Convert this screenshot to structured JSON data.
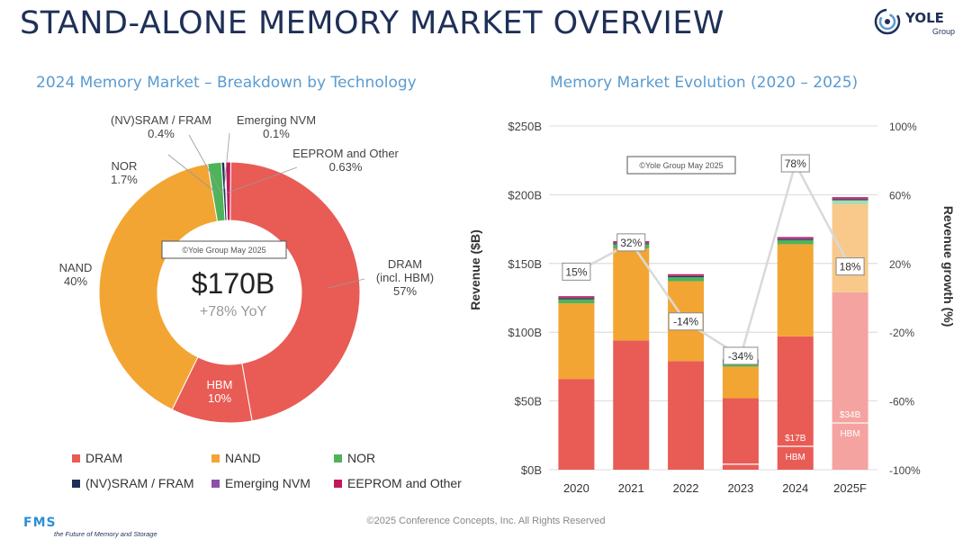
{
  "title": "STAND-ALONE MEMORY MARKET OVERVIEW",
  "logo": {
    "name": "YOLE",
    "sub": "Group"
  },
  "left_subtitle": "2024 Memory Market – Breakdown by Technology",
  "right_subtitle": "Memory Market Evolution (2020 – 2025)",
  "footer": "©2025 Conference Concepts, Inc. All Rights Reserved",
  "fms": {
    "mark": "FMS",
    "tagline": "the Future of Memory and Storage"
  },
  "colors": {
    "DRAM": "#e85c55",
    "NAND": "#f3a533",
    "NOR": "#4fb35a",
    "SRAM": "#1f3057",
    "Emerging": "#8e4fa8",
    "EEPROM": "#c2185b",
    "DRAM_light": "#f4a3a0",
    "NAND_light": "#f8c98a",
    "NOR_light": "#a8dcae",
    "growth_line": "#d9d9d9",
    "title": "#1f3057",
    "subtitle": "#5a9bd0"
  },
  "chart_data": [
    {
      "type": "pie",
      "title": "2024 Memory Market – Breakdown by Technology",
      "watermark": "©Yole Group May 2025",
      "center_value": "$170B",
      "center_sub": "+78% YoY",
      "slices": [
        {
          "key": "DRAM",
          "label_lines": [
            "DRAM",
            "(incl. HBM)",
            "57%"
          ],
          "value": 57
        },
        {
          "key": "HBM",
          "label_lines": [
            "HBM",
            "10%"
          ],
          "value": 10
        },
        {
          "key": "NAND",
          "label_lines": [
            "NAND",
            "40%"
          ],
          "value": 40
        },
        {
          "key": "NOR",
          "label_lines": [
            "NOR",
            "1.7%"
          ],
          "value": 1.7
        },
        {
          "key": "SRAM",
          "label_lines": [
            "(NV)SRAM / FRAM",
            "0.4%"
          ],
          "value": 0.4
        },
        {
          "key": "Emerging",
          "label_lines": [
            "Emerging NVM",
            "0.1%"
          ],
          "value": 0.1
        },
        {
          "key": "EEPROM",
          "label_lines": [
            "EEPROM and Other",
            "0.63%"
          ],
          "value": 0.63
        }
      ]
    },
    {
      "type": "bar",
      "title": "Memory Market Evolution (2020 – 2025)",
      "watermark": "©Yole Group May 2025",
      "categories": [
        "2020",
        "2021",
        "2022",
        "2023",
        "2024",
        "2025F"
      ],
      "ylabel": "Revenue ($B)",
      "y2label": "Revenue growth (%)",
      "ylim": [
        0,
        250
      ],
      "y2lim": [
        -100,
        100
      ],
      "yticks": [
        "$0B",
        "$50B",
        "$100B",
        "$150B",
        "$200B",
        "$250B"
      ],
      "y2ticks": [
        "-100%",
        "-60%",
        "-20%",
        "20%",
        "60%",
        "100%"
      ],
      "stacked": true,
      "series": [
        {
          "name": "DRAM",
          "values": [
            66,
            94,
            79,
            52,
            97,
            129
          ]
        },
        {
          "name": "NAND",
          "values": [
            55,
            67,
            58,
            23,
            67,
            64
          ]
        },
        {
          "name": "NOR",
          "values": [
            3,
            3,
            3,
            3,
            3,
            3
          ]
        },
        {
          "name": "(NV)SRAM / FRAM",
          "values": [
            0.7,
            0.7,
            0.7,
            0.7,
            0.7,
            0.7
          ]
        },
        {
          "name": "Emerging NVM",
          "values": [
            0.5,
            0.5,
            0.5,
            0.5,
            0.5,
            0.5
          ]
        },
        {
          "name": "EEPROM and Other",
          "values": [
            1,
            1,
            1,
            1,
            1,
            1
          ]
        }
      ],
      "hbm": [
        {
          "year": "2023",
          "value": 4,
          "labels": []
        },
        {
          "year": "2024",
          "value": 17,
          "labels": [
            "$17B",
            "HBM"
          ]
        },
        {
          "year": "2025F",
          "value": 34,
          "labels": [
            "$34B",
            "HBM"
          ]
        }
      ],
      "growth": {
        "values": [
          15,
          32,
          -14,
          -34,
          78,
          18
        ],
        "labels": [
          "15%",
          "32%",
          "-14%",
          "-34%",
          "78%",
          "18%"
        ]
      },
      "legend": [
        "DRAM",
        "NAND",
        "NOR",
        "(NV)SRAM / FRAM",
        "Emerging NVM",
        "EEPROM and Other"
      ]
    }
  ]
}
